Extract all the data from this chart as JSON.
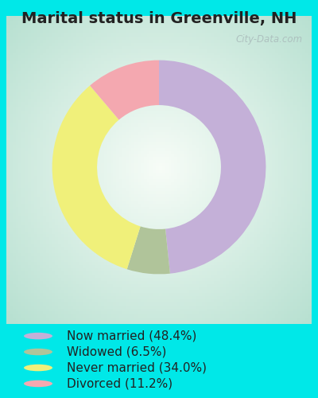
{
  "title": "Marital status in Greenville, NH",
  "slices": [
    48.4,
    6.5,
    34.0,
    11.2
  ],
  "labels": [
    "Now married (48.4%)",
    "Widowed (6.5%)",
    "Never married (34.0%)",
    "Divorced (11.2%)"
  ],
  "colors": [
    "#c4b0d8",
    "#b0c49a",
    "#f0f07a",
    "#f4a8b0"
  ],
  "bg_outer": "#00e8e8",
  "bg_chart": "#e0f0e8",
  "watermark": "City-Data.com",
  "title_fontsize": 14,
  "legend_fontsize": 11,
  "donut_width": 0.42
}
